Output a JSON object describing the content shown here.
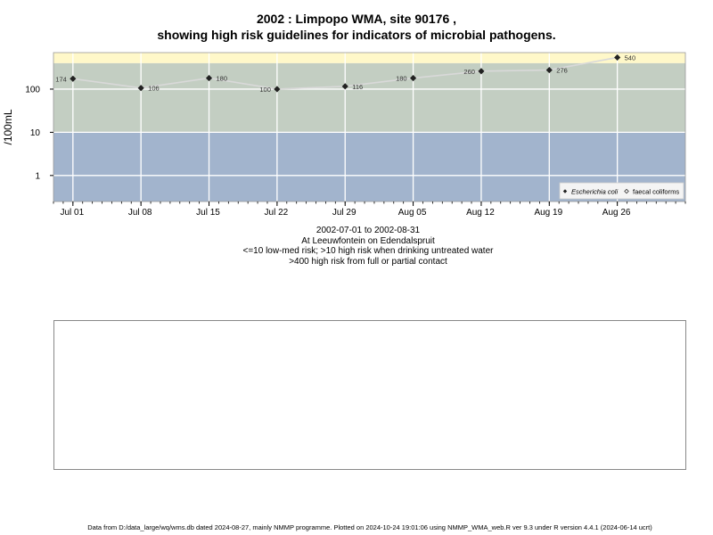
{
  "title_line1": "2002 : Limpopo WMA, site 90176 ,",
  "title_line2": "showing high risk guidelines for indicators of microbial pathogens.",
  "subtitle": {
    "line1": "2002-07-01 to 2002-08-31",
    "line2": "At Leeuwfontein on Edendalspruit",
    "line3": "<=10 low-med risk; >10 high risk when drinking untreated water",
    "line4": ">400 high risk from full or partial contact"
  },
  "footer": "Data from D:/data_large/wq/wms.db dated 2024-08-27, mainly NMMP programme. Plotted on 2024-10-24 19:01:06 using NMMP_WMA_web.R ver 9.3 under R version 4.4.1 (2024-06-14 ucrt)",
  "chart_data": {
    "type": "line",
    "ylabel": "/100mL",
    "y_scale": "log10",
    "ylim": [
      0.25,
      700
    ],
    "y_ticks": [
      1,
      10,
      100
    ],
    "y_tick_labels": [
      "1",
      "10",
      "100"
    ],
    "x_ticks": [
      "2002-07-01",
      "2002-07-08",
      "2002-07-15",
      "2002-07-22",
      "2002-07-29",
      "2002-08-05",
      "2002-08-12",
      "2002-08-19",
      "2002-08-26"
    ],
    "x_tick_labels": [
      "Jul 01",
      "Jul 08",
      "Jul 15",
      "Jul 22",
      "Jul 29",
      "Aug 05",
      "Aug 12",
      "Aug 19",
      "Aug 26"
    ],
    "xlim": [
      "2002-06-29",
      "2002-09-02"
    ],
    "risk_bands": [
      {
        "from": 0.25,
        "to": 10,
        "color": "#a2b4cd"
      },
      {
        "from": 10,
        "to": 400,
        "color": "#c3cec2"
      },
      {
        "from": 400,
        "to": 700,
        "color": "#fff8c9"
      }
    ],
    "series": [
      {
        "name": "Escherichia coli",
        "marker": "filled-diamond",
        "line_color": "#d9d9d9",
        "x": [
          "2002-07-01",
          "2002-07-08",
          "2002-07-15",
          "2002-07-22",
          "2002-07-29",
          "2002-08-05",
          "2002-08-12",
          "2002-08-19",
          "2002-08-26"
        ],
        "y": [
          174,
          106,
          180,
          100,
          116,
          180,
          260,
          276,
          540
        ],
        "labels": [
          "174",
          "106",
          "180",
          "100",
          "116",
          "180",
          "260",
          "276",
          "540"
        ]
      },
      {
        "name": "faecal coliforms",
        "marker": "open-diamond",
        "x": [],
        "y": []
      }
    ],
    "legend_position": "bottom-right",
    "grid": true
  }
}
